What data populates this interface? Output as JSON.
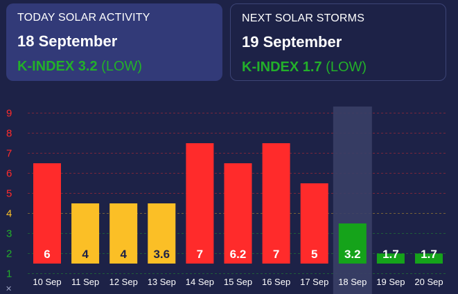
{
  "today": {
    "label": "TODAY SOLAR ACTIVITY",
    "date": "18 September",
    "k_label": "K-INDEX 3.2",
    "level": "(LOW)"
  },
  "next": {
    "label": "NEXT SOLAR STORMS",
    "date": "19 September",
    "k_label": "K-INDEX 1.7",
    "level": "(LOW)"
  },
  "colors": {
    "high": "#ff2b2b",
    "moderate": "#fbbf26",
    "low": "#15a31a",
    "highlight": "#3a3f66"
  },
  "chart_data": {
    "type": "bar",
    "categories": [
      "10 Sep",
      "11 Sep",
      "12 Sep",
      "13 Sep",
      "14 Sep",
      "15 Sep",
      "16 Sep",
      "17 Sep",
      "18 Sep",
      "19 Sep",
      "20 Sep"
    ],
    "values": [
      6,
      4,
      4,
      3.6,
      7,
      6.2,
      7,
      5,
      3.2,
      1.7,
      1.7
    ],
    "value_labels": [
      "6",
      "4",
      "4",
      "3.6",
      "7",
      "6.2",
      "7",
      "5",
      "3.2",
      "1.7",
      "1.7"
    ],
    "value_colors": [
      "#ff2b2b",
      "#fbbf26",
      "#fbbf26",
      "#fbbf26",
      "#ff2b2b",
      "#ff2b2b",
      "#ff2b2b",
      "#ff2b2b",
      "#15a31a",
      "#15a31a",
      "#15a31a"
    ],
    "bar_heights": [
      6.5,
      4.5,
      4.5,
      4.5,
      7.5,
      6.5,
      7.5,
      5.5,
      3.5,
      2,
      2
    ],
    "y_ticks": [
      "1",
      "2",
      "3",
      "4",
      "5",
      "6",
      "7",
      "8",
      "9"
    ],
    "y_tick_colors": [
      "#23b02a",
      "#23b02a",
      "#23b02a",
      "#fbbf26",
      "#ff2b2b",
      "#ff2b2b",
      "#ff2b2b",
      "#ff2b2b",
      "#ff2b2b"
    ],
    "ylim": [
      1.5,
      9.5
    ],
    "highlighted_category": "18 Sep",
    "grid": true,
    "x_axis_marker": "✕"
  }
}
